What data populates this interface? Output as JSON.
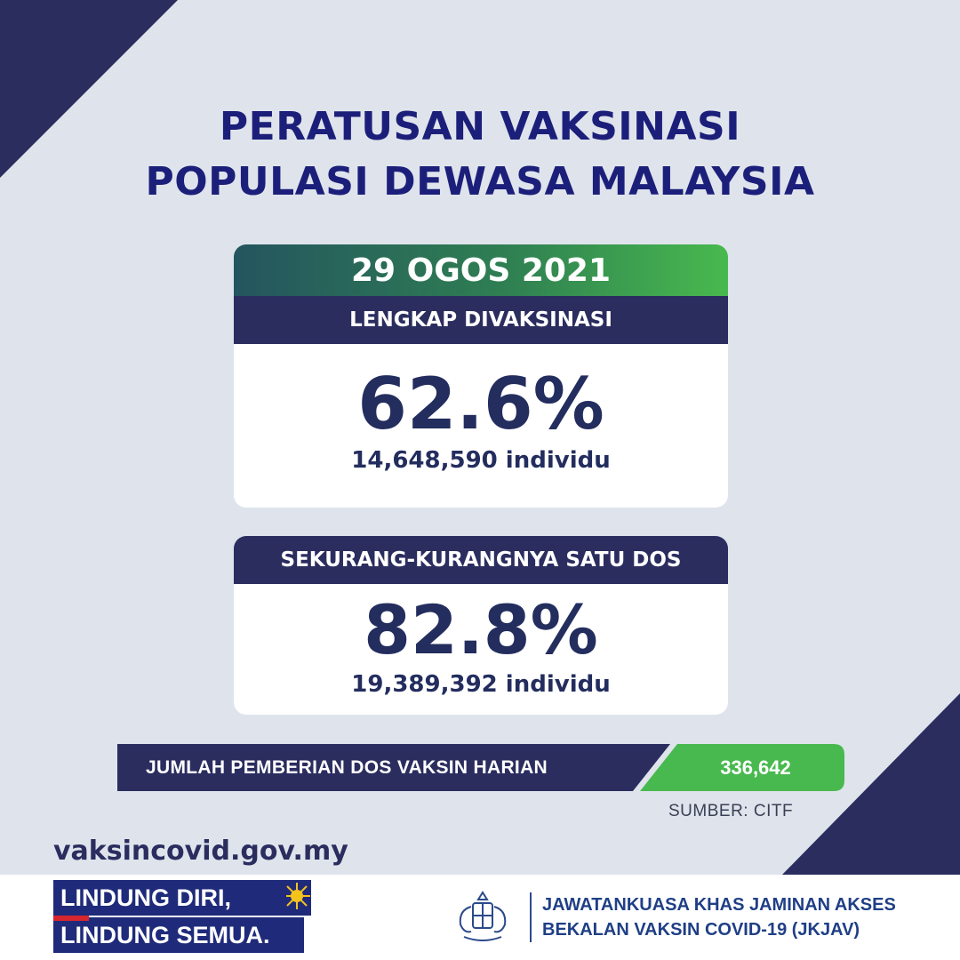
{
  "title": {
    "line1": "PERATUSAN VAKSINASI",
    "line2": "POPULASI DEWASA MALAYSIA"
  },
  "date": "29 OGOS 2021",
  "fully_vaccinated": {
    "label": "LENGKAP DIVAKSINASI",
    "percent": "62.6%",
    "count": "14,648,590 individu"
  },
  "at_least_one_dose": {
    "label": "SEKURANG-KURANGNYA SATU DOS",
    "percent": "82.8%",
    "count": "19,389,392 individu"
  },
  "daily_doses": {
    "label": "JUMLAH PEMBERIAN DOS VAKSIN HARIAN",
    "value": "336,642"
  },
  "source": "SUMBER: CITF",
  "url": "vaksincovid.gov.my",
  "slogan": {
    "line1": "LINDUNG DIRI,",
    "line2": "LINDUNG SEMUA."
  },
  "org": {
    "line1": "JAWATANKUASA KHAS JAMINAN AKSES",
    "line2": "BEKALAN VAKSIN COVID-19 (JKJAV)"
  },
  "colors": {
    "background": "#dfe4ec",
    "navy": "#2b2d5f",
    "title_blue": "#1c1f7a",
    "green": "#48b94e",
    "teal": "#24555f",
    "white": "#ffffff"
  },
  "icons": [
    "corner-triangle",
    "sun-stripes",
    "government-crest"
  ]
}
